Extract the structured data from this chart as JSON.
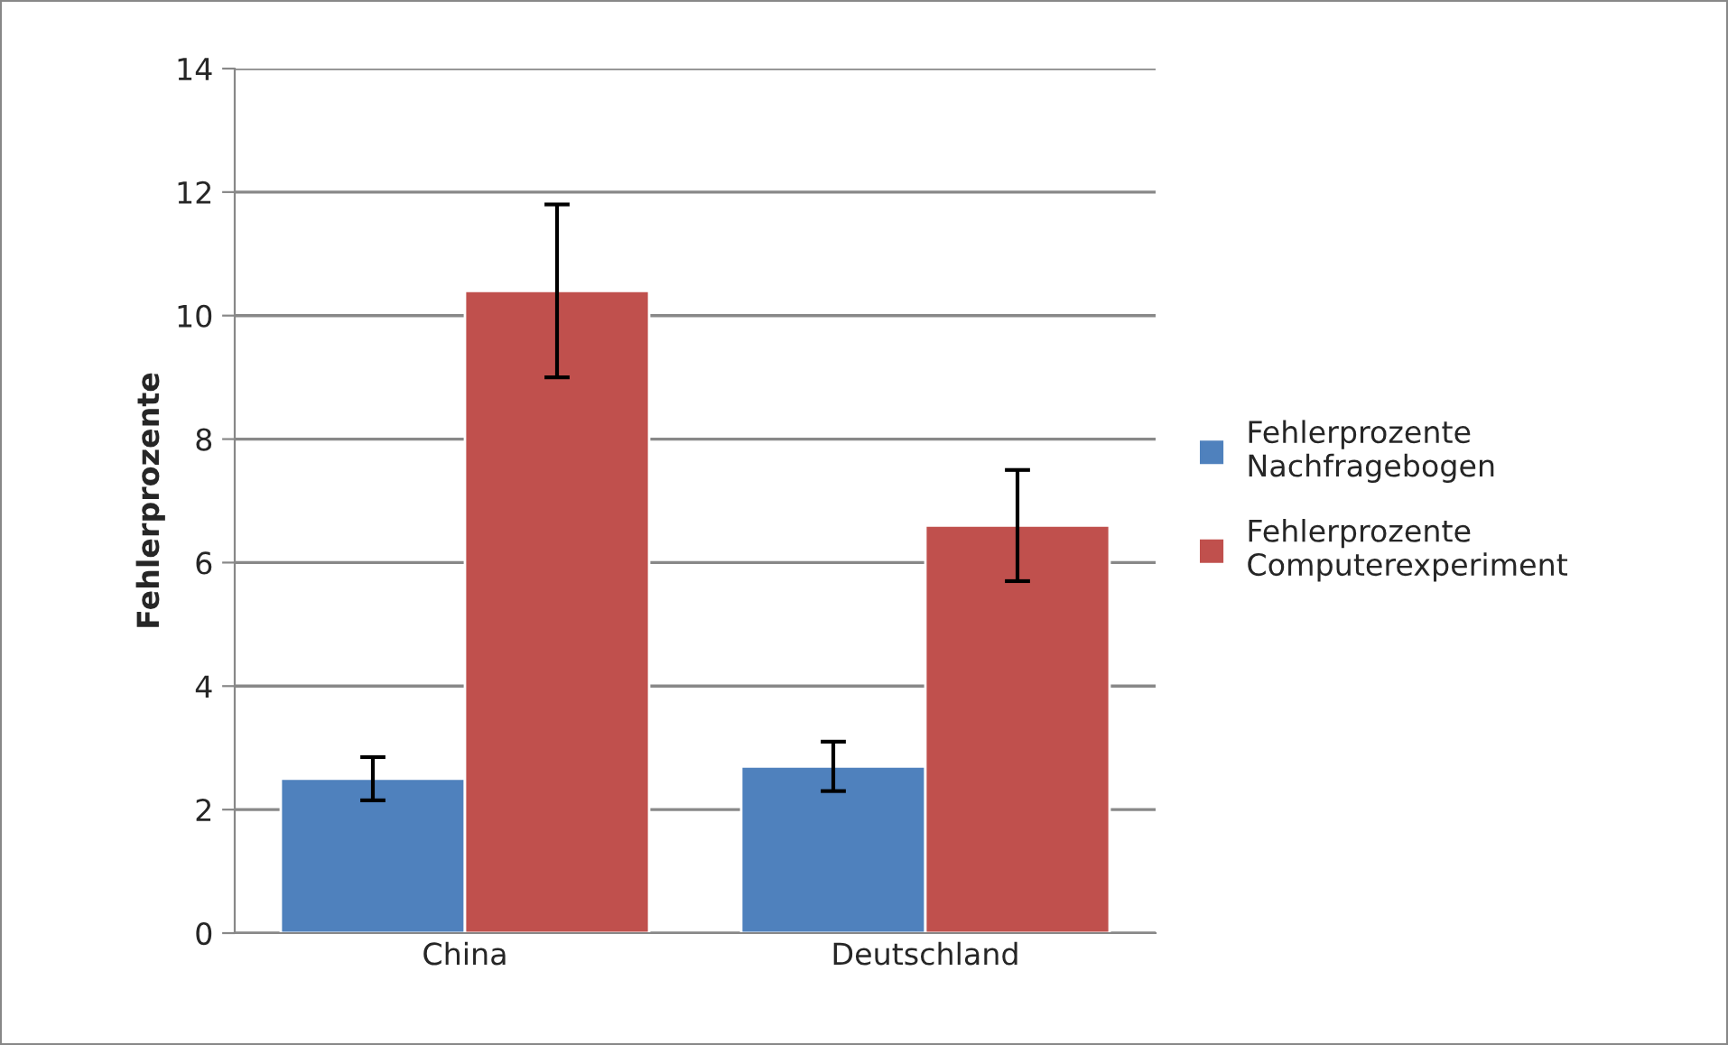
{
  "chart_data": {
    "type": "bar",
    "ylabel": "Fehlerprozente",
    "categories": [
      "China",
      "Deutschland"
    ],
    "series": [
      {
        "name": "Fehlerprozente Nachfragebogen",
        "color": "#4f81bd",
        "values": [
          2.5,
          2.7
        ],
        "errors": [
          0.35,
          0.4
        ]
      },
      {
        "name": "Fehlerprozente Computerexperiment",
        "color": "#c0504d",
        "values": [
          10.4,
          6.6
        ],
        "errors": [
          1.4,
          0.9
        ]
      }
    ],
    "ylim": [
      0,
      14
    ],
    "yticks": [
      0,
      2,
      4,
      6,
      8,
      10,
      12,
      14
    ],
    "grid": "y",
    "legend": "right"
  }
}
